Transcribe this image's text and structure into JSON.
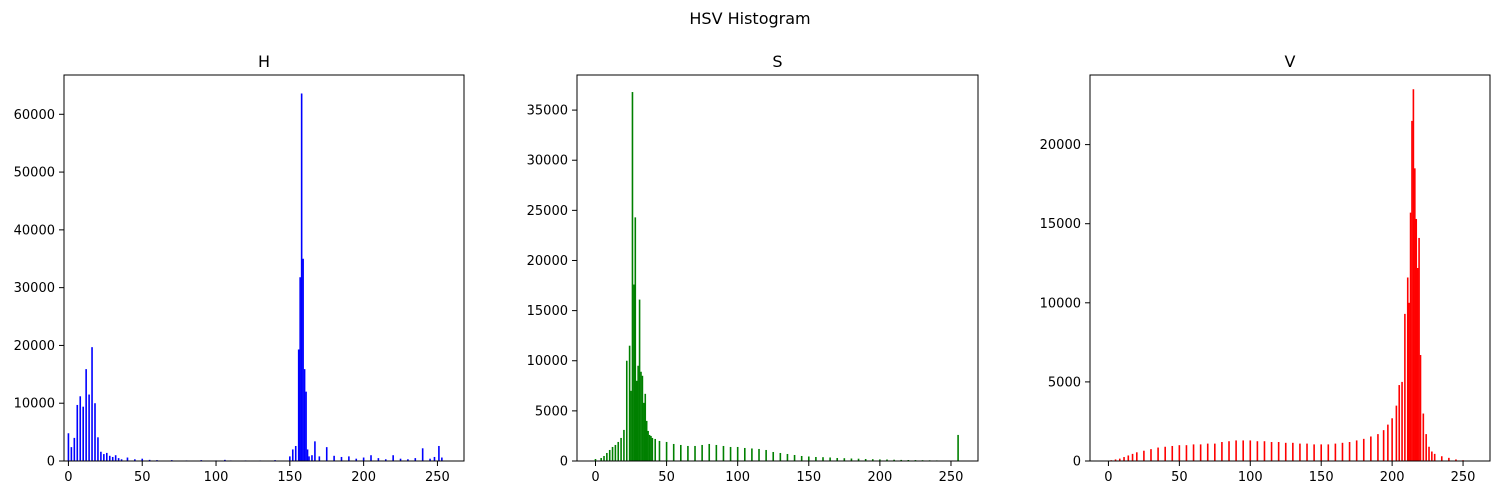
{
  "figure": {
    "title": "HSV Histogram"
  },
  "chart_data": [
    {
      "type": "bar",
      "title": "H",
      "color": "#0000ff",
      "xlim": [
        -3,
        268
      ],
      "ylim": [
        0,
        66800
      ],
      "xticks": [
        0,
        50,
        100,
        150,
        200,
        250
      ],
      "yticks": [
        0,
        10000,
        20000,
        30000,
        40000,
        50000,
        60000
      ],
      "x": [
        0,
        2,
        4,
        6,
        8,
        10,
        12,
        14,
        16,
        18,
        20,
        22,
        24,
        26,
        28,
        30,
        32,
        34,
        36,
        40,
        45,
        50,
        55,
        60,
        70,
        80,
        90,
        100,
        106,
        110,
        120,
        130,
        140,
        150,
        152,
        154,
        156,
        157,
        158,
        159,
        160,
        161,
        162,
        163,
        165,
        167,
        170,
        175,
        180,
        185,
        190,
        195,
        200,
        205,
        210,
        215,
        220,
        225,
        230,
        235,
        240,
        245,
        248,
        251,
        253
      ],
      "values": [
        4800,
        2400,
        4000,
        9700,
        11200,
        9400,
        15900,
        11500,
        19700,
        10000,
        4100,
        1600,
        1200,
        1400,
        900,
        700,
        1000,
        500,
        300,
        600,
        300,
        400,
        200,
        150,
        150,
        100,
        150,
        100,
        200,
        100,
        100,
        100,
        150,
        800,
        2000,
        2600,
        19300,
        31800,
        63600,
        35000,
        15900,
        12000,
        2000,
        800,
        1000,
        3400,
        800,
        2400,
        900,
        700,
        800,
        400,
        600,
        1000,
        500,
        300,
        1000,
        400,
        300,
        500,
        2200,
        400,
        700,
        2600,
        600
      ]
    },
    {
      "type": "bar",
      "title": "S",
      "color": "#008000",
      "xlim": [
        -13,
        269
      ],
      "ylim": [
        0,
        38500
      ],
      "xticks": [
        0,
        50,
        100,
        150,
        200,
        250
      ],
      "yticks": [
        0,
        5000,
        10000,
        15000,
        20000,
        25000,
        30000,
        35000
      ],
      "x": [
        0,
        4,
        6,
        8,
        10,
        12,
        14,
        16,
        18,
        20,
        22,
        24,
        25,
        26,
        27,
        28,
        29,
        30,
        31,
        32,
        33,
        34,
        35,
        36,
        37,
        38,
        39,
        40,
        42,
        45,
        50,
        55,
        60,
        65,
        70,
        75,
        80,
        85,
        90,
        95,
        100,
        105,
        110,
        115,
        120,
        125,
        130,
        135,
        140,
        145,
        150,
        155,
        160,
        165,
        170,
        175,
        180,
        185,
        190,
        195,
        200,
        205,
        210,
        215,
        220,
        225,
        230,
        235,
        240,
        245,
        250,
        255
      ],
      "values": [
        200,
        300,
        500,
        800,
        1100,
        1400,
        1600,
        1900,
        2300,
        3100,
        10000,
        11500,
        7000,
        36800,
        17600,
        24300,
        8000,
        9500,
        16100,
        8900,
        8500,
        5800,
        6700,
        4000,
        3000,
        2600,
        2500,
        2300,
        2200,
        2000,
        1900,
        1700,
        1600,
        1500,
        1500,
        1600,
        1700,
        1600,
        1500,
        1400,
        1400,
        1300,
        1250,
        1200,
        1100,
        900,
        800,
        700,
        600,
        500,
        450,
        400,
        380,
        350,
        300,
        280,
        250,
        230,
        200,
        180,
        160,
        150,
        130,
        110,
        100,
        90,
        80,
        70,
        60,
        50,
        50,
        2600
      ]
    },
    {
      "type": "bar",
      "title": "V",
      "color": "#ff0000",
      "xlim": [
        -13,
        269
      ],
      "ylim": [
        0,
        24400
      ],
      "xticks": [
        0,
        50,
        100,
        150,
        200,
        250
      ],
      "yticks": [
        0,
        5000,
        10000,
        15000,
        20000
      ],
      "x": [
        2,
        5,
        8,
        11,
        14,
        17,
        20,
        25,
        30,
        35,
        40,
        45,
        50,
        55,
        60,
        65,
        70,
        75,
        80,
        85,
        90,
        95,
        100,
        105,
        110,
        115,
        120,
        125,
        130,
        135,
        140,
        145,
        150,
        155,
        160,
        165,
        170,
        175,
        180,
        185,
        190,
        194,
        197,
        200,
        203,
        205,
        207,
        209,
        211,
        212,
        213,
        214,
        215,
        216,
        217,
        218,
        219,
        220,
        222,
        224,
        226,
        228,
        230,
        235,
        240,
        245,
        250
      ],
      "values": [
        50,
        100,
        150,
        250,
        350,
        450,
        550,
        650,
        750,
        850,
        900,
        950,
        1000,
        1000,
        1050,
        1050,
        1100,
        1100,
        1200,
        1250,
        1300,
        1300,
        1300,
        1250,
        1250,
        1200,
        1200,
        1150,
        1150,
        1100,
        1100,
        1050,
        1050,
        1050,
        1100,
        1150,
        1200,
        1300,
        1400,
        1550,
        1700,
        1950,
        2300,
        2700,
        3500,
        4800,
        5000,
        9300,
        11600,
        10000,
        15700,
        21500,
        23500,
        18500,
        15300,
        12200,
        14100,
        6700,
        3000,
        1700,
        900,
        600,
        450,
        300,
        200,
        100,
        50
      ]
    }
  ]
}
